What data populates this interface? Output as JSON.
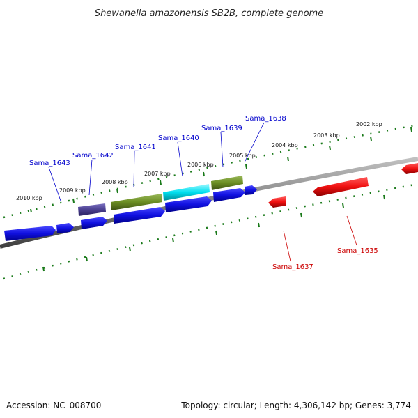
{
  "title": "Shewanella amazonensis SB2B, complete genome",
  "footer": {
    "accession": "Accession: NC_008700",
    "topology": "Topology: circular; Length: 4,306,142 bp; Genes: 3,774"
  },
  "colors": {
    "forward_gene": "#1010e0",
    "reverse_gene": "#f01010",
    "green_gene": "#6b8e23",
    "cyan_gene": "#00e0f0",
    "purple_gene": "#4a3f8f",
    "backbone": "#808080",
    "ruler": "#1a7a1a",
    "forward_label": "#0000cc",
    "reverse_label": "#cc0000"
  },
  "ruler_labels": [
    "2010 kbp",
    "2009 kbp",
    "2008 kbp",
    "2007 kbp",
    "2006 kbp",
    "2005 kbp",
    "2004 kbp",
    "2003 kbp",
    "2002 kbp"
  ],
  "gene_labels": {
    "forward": [
      "Sama_1643",
      "Sama_1642",
      "Sama_1641",
      "Sama_1640",
      "Sama_1639",
      "Sama_1638"
    ],
    "reverse": [
      "Sama_1637",
      "Sama_1635"
    ]
  }
}
